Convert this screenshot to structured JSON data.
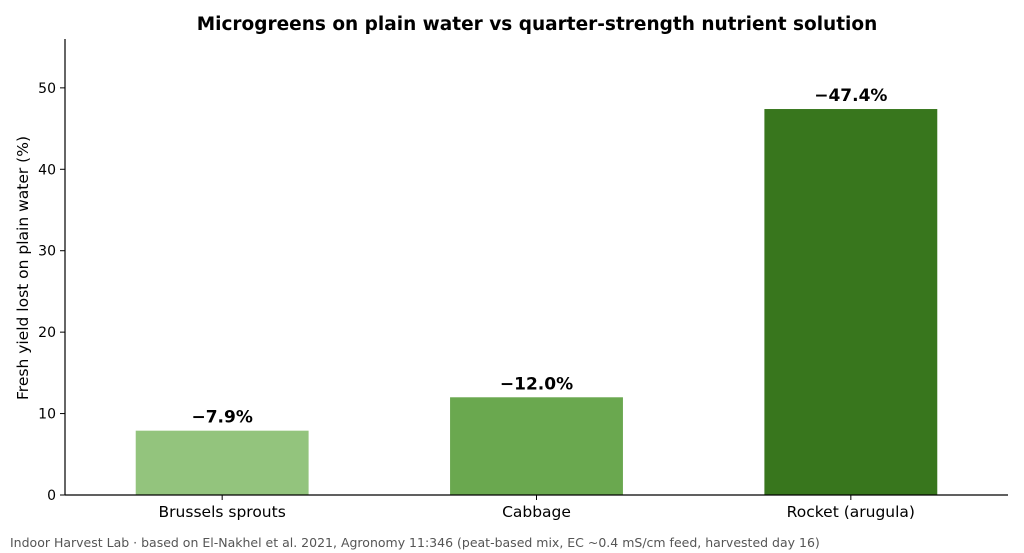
{
  "chart_data": {
    "type": "bar",
    "title": "Microgreens on plain water vs quarter-strength nutrient solution",
    "xlabel": "",
    "ylabel": "Fresh yield lost on plain water (%)",
    "categories": [
      "Brussels sprouts",
      "Cabbage",
      "Rocket (arugula)"
    ],
    "values": [
      7.9,
      12.0,
      47.4
    ],
    "data_labels": [
      "−7.9%",
      "−12.0%",
      "−47.4%"
    ],
    "colors": [
      "#93c47d",
      "#6aa84f",
      "#38761d"
    ],
    "ylim": [
      0,
      56
    ],
    "yticks": [
      0,
      10,
      20,
      30,
      40,
      50
    ],
    "grid": false,
    "legend": "none"
  },
  "caption": "Indoor Harvest Lab · based on El-Nakhel et al. 2021, Agronomy 11:346 (peat-based mix, EC ~0.4 mS/cm feed, harvested day 16)"
}
